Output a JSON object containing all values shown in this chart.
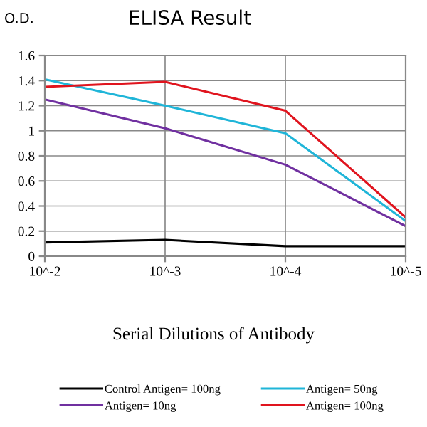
{
  "chart_data": {
    "type": "line",
    "title": "ELISA Result",
    "ylabel": "O.D.",
    "xlabel": "Serial Dilutions of Antibody",
    "categories": [
      "10^-2",
      "10^-3",
      "10^-4",
      "10^-5"
    ],
    "series": [
      {
        "name": "Control Antigen= 100ng",
        "color": "#000000",
        "values": [
          0.11,
          0.13,
          0.08,
          0.08
        ]
      },
      {
        "name": "Antigen= 10ng",
        "color": "#7030a0",
        "values": [
          1.25,
          1.02,
          0.73,
          0.24
        ]
      },
      {
        "name": "Antigen= 50ng",
        "color": "#1fb5d8",
        "values": [
          1.41,
          1.2,
          0.98,
          0.28
        ]
      },
      {
        "name": "Antigen= 100ng",
        "color": "#e0141e",
        "values": [
          1.35,
          1.39,
          1.16,
          0.31
        ]
      }
    ],
    "ylim": [
      0,
      1.6
    ],
    "yticks": [
      0,
      0.2,
      0.4,
      0.6,
      0.8,
      1,
      1.2,
      1.4,
      1.6
    ],
    "grid": true,
    "legend": "bottom",
    "marker": "none",
    "line_style": "solid"
  }
}
